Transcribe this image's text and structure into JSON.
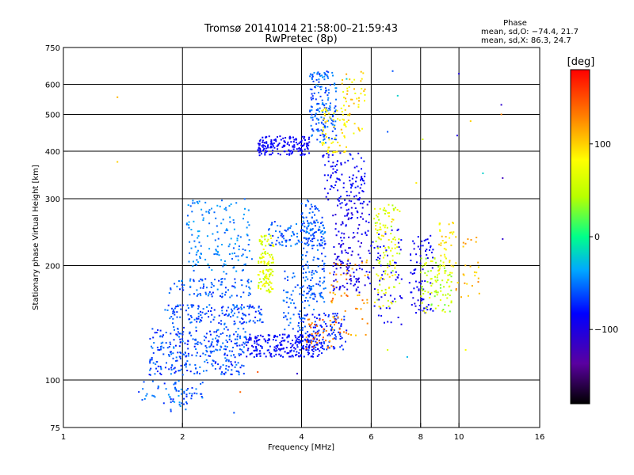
{
  "chart_data": {
    "type": "scatter",
    "title": "Tromsø 20141014 21:58:00–21:59:43",
    "subtitle": "RwPretec (8p)",
    "xlabel": "Frequency [MHz]",
    "ylabel": "Stationary phase Virtual Height [km]",
    "x_scale": "log",
    "y_scale": "log",
    "xlim": [
      1,
      16
    ],
    "ylim": [
      75,
      750
    ],
    "x_ticks": [
      1,
      2,
      4,
      6,
      8,
      10,
      16
    ],
    "x_tick_labels": [
      "1",
      "2",
      "4",
      "6",
      "8",
      "10",
      "16"
    ],
    "y_ticks": [
      75,
      100,
      200,
      300,
      400,
      500,
      600,
      750
    ],
    "y_tick_labels": [
      "75",
      "100",
      "200",
      "300",
      "400",
      "500",
      "600",
      "750"
    ],
    "grid": true,
    "colorbar": {
      "label": "[deg]",
      "min": -180,
      "max": 180,
      "ticks": [
        100,
        0,
        -100
      ],
      "tick_labels": [
        "100",
        "0",
        "−100"
      ],
      "colormap": "rainbow"
    },
    "stats": {
      "header": "Phase",
      "line1": "mean, sd,O: −74.4, 21.7",
      "line2": "mean, sd,X:  86.3, 24.7"
    },
    "clusters": [
      {
        "f": [
          1.65,
          2.9
        ],
        "h": [
          103,
          138
        ],
        "phase": [
          -80,
          -45
        ],
        "n": 320
      },
      {
        "f": [
          1.55,
          2.3
        ],
        "h": [
          86,
          100
        ],
        "phase": [
          -75,
          -40
        ],
        "n": 45
      },
      {
        "f": [
          1.85,
          2.1
        ],
        "h": [
          82,
          96
        ],
        "phase": [
          -70,
          -35
        ],
        "n": 25
      },
      {
        "f": [
          2.9,
          4.5
        ],
        "h": [
          115,
          132
        ],
        "phase": [
          -95,
          -70
        ],
        "n": 230
      },
      {
        "f": [
          3.9,
          5.2
        ],
        "h": [
          120,
          150
        ],
        "phase": [
          -85,
          -60
        ],
        "n": 130
      },
      {
        "f": [
          1.8,
          3.2
        ],
        "h": [
          140,
          158
        ],
        "phase": [
          -80,
          -45
        ],
        "n": 150
      },
      {
        "f": [
          1.85,
          3.0
        ],
        "h": [
          165,
          185
        ],
        "phase": [
          -75,
          -40
        ],
        "n": 90
      },
      {
        "f": [
          2.05,
          3.0
        ],
        "h": [
          190,
          300
        ],
        "phase": [
          -60,
          -35
        ],
        "n": 150
      },
      {
        "f": [
          3.1,
          3.4
        ],
        "h": [
          170,
          240
        ],
        "phase": [
          40,
          90
        ],
        "n": 120
      },
      {
        "f": [
          3.3,
          4.6
        ],
        "h": [
          225,
          262
        ],
        "phase": [
          -75,
          -40
        ],
        "n": 110
      },
      {
        "f": [
          3.6,
          4.3
        ],
        "h": [
          135,
          195
        ],
        "phase": [
          -70,
          -40
        ],
        "n": 70
      },
      {
        "f": [
          4.0,
          4.6
        ],
        "h": [
          160,
          300
        ],
        "phase": [
          -75,
          -45
        ],
        "n": 140
      },
      {
        "f": [
          4.1,
          4.9
        ],
        "h": [
          120,
          145
        ],
        "phase": [
          110,
          160
        ],
        "n": 40
      },
      {
        "f": [
          3.1,
          4.2
        ],
        "h": [
          390,
          440
        ],
        "phase": [
          -95,
          -80
        ],
        "n": 160
      },
      {
        "f": [
          4.2,
          4.9
        ],
        "h": [
          420,
          650
        ],
        "phase": [
          -75,
          -40
        ],
        "n": 170
      },
      {
        "f": [
          4.5,
          5.2
        ],
        "h": [
          395,
          520
        ],
        "phase": [
          75,
          100
        ],
        "n": 60
      },
      {
        "f": [
          4.5,
          5.8
        ],
        "h": [
          290,
          400
        ],
        "phase": [
          -95,
          -75
        ],
        "n": 110
      },
      {
        "f": [
          5.0,
          5.8
        ],
        "h": [
          440,
          650
        ],
        "phase": [
          70,
          120
        ],
        "n": 50
      },
      {
        "f": [
          4.8,
          6.0
        ],
        "h": [
          170,
          300
        ],
        "phase": [
          -110,
          -80
        ],
        "n": 160
      },
      {
        "f": [
          4.7,
          5.9
        ],
        "h": [
          130,
          210
        ],
        "phase": [
          100,
          150
        ],
        "n": 60
      },
      {
        "f": [
          6.1,
          7.1
        ],
        "h": [
          155,
          290
        ],
        "phase": [
          30,
          100
        ],
        "n": 120
      },
      {
        "f": [
          6.0,
          7.2
        ],
        "h": [
          140,
          250
        ],
        "phase": [
          -100,
          -80
        ],
        "n": 60
      },
      {
        "f": [
          7.5,
          8.6
        ],
        "h": [
          150,
          240
        ],
        "phase": [
          -100,
          -80
        ],
        "n": 80
      },
      {
        "f": [
          8.0,
          9.6
        ],
        "h": [
          150,
          210
        ],
        "phase": [
          20,
          80
        ],
        "n": 90
      },
      {
        "f": [
          8.9,
          9.7
        ],
        "h": [
          190,
          260
        ],
        "phase": [
          70,
          110
        ],
        "n": 40
      },
      {
        "f": [
          9.8,
          11.3
        ],
        "h": [
          165,
          240
        ],
        "phase": [
          90,
          130
        ],
        "n": 30
      }
    ],
    "outliers": [
      {
        "f": 1.37,
        "h": 555,
        "phase": 110
      },
      {
        "f": 1.37,
        "h": 375,
        "phase": 100
      },
      {
        "f": 5.2,
        "h": 620,
        "phase": -20
      },
      {
        "f": 6.8,
        "h": 650,
        "phase": -60
      },
      {
        "f": 7.0,
        "h": 560,
        "phase": -20
      },
      {
        "f": 6.6,
        "h": 450,
        "phase": -60
      },
      {
        "f": 7.8,
        "h": 330,
        "phase": 90
      },
      {
        "f": 8.1,
        "h": 430,
        "phase": 60
      },
      {
        "f": 10.0,
        "h": 640,
        "phase": -100
      },
      {
        "f": 9.9,
        "h": 440,
        "phase": -100
      },
      {
        "f": 10.7,
        "h": 480,
        "phase": 100
      },
      {
        "f": 11.5,
        "h": 350,
        "phase": -20
      },
      {
        "f": 12.8,
        "h": 530,
        "phase": -110
      },
      {
        "f": 12.8,
        "h": 500,
        "phase": 130
      },
      {
        "f": 12.9,
        "h": 340,
        "phase": -120
      },
      {
        "f": 12.9,
        "h": 235,
        "phase": -110
      },
      {
        "f": 3.1,
        "h": 105,
        "phase": 150
      },
      {
        "f": 3.9,
        "h": 104,
        "phase": -110
      },
      {
        "f": 2.7,
        "h": 82,
        "phase": -60
      },
      {
        "f": 2.8,
        "h": 93,
        "phase": 140
      },
      {
        "f": 10.4,
        "h": 120,
        "phase": 80
      },
      {
        "f": 6.6,
        "h": 120,
        "phase": 60
      },
      {
        "f": 7.4,
        "h": 115,
        "phase": -30
      }
    ]
  }
}
